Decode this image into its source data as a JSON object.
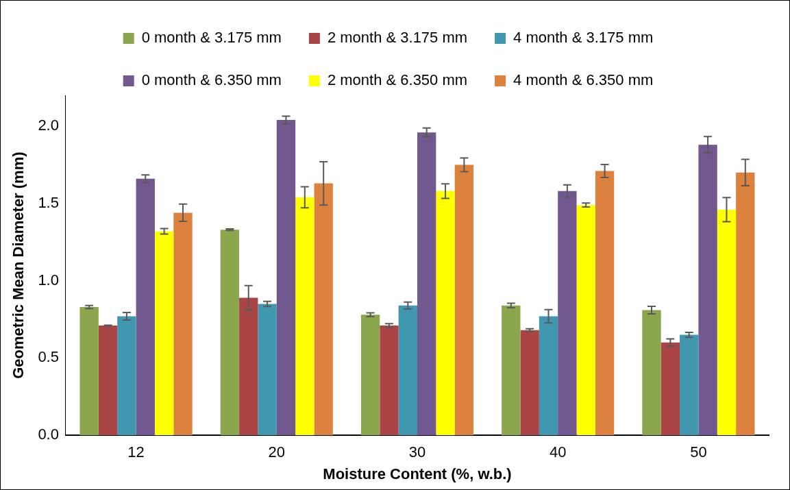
{
  "chart_data": {
    "type": "bar",
    "xlabel": "Moisture Content (%, w.b.)",
    "ylabel": "Geometric Mean Diameter (mm)",
    "categories": [
      "12",
      "20",
      "30",
      "40",
      "50"
    ],
    "series": [
      {
        "name": "0 month & 3.175 mm",
        "color": "#8ba64d",
        "values": [
          0.83,
          1.33,
          0.78,
          0.84,
          0.81
        ],
        "errors": [
          0.01,
          0.005,
          0.012,
          0.014,
          0.024
        ]
      },
      {
        "name": "2 month & 3.175 mm",
        "color": "#ab4545",
        "values": [
          0.71,
          0.89,
          0.71,
          0.68,
          0.6
        ],
        "errors": [
          0.003,
          0.079,
          0.013,
          0.009,
          0.024
        ]
      },
      {
        "name": "4 month & 3.175 mm",
        "color": "#4297b0",
        "values": [
          0.77,
          0.85,
          0.84,
          0.77,
          0.65
        ],
        "errors": [
          0.024,
          0.017,
          0.022,
          0.043,
          0.016
        ]
      },
      {
        "name": "0 month & 6.350 mm",
        "color": "#71588f",
        "values": [
          1.66,
          2.04,
          1.96,
          1.58,
          1.88
        ],
        "errors": [
          0.025,
          0.025,
          0.028,
          0.04,
          0.053
        ]
      },
      {
        "name": "2 month & 6.350 mm",
        "color": "#ffff00",
        "values": [
          1.32,
          1.54,
          1.58,
          1.49,
          1.46
        ],
        "errors": [
          0.018,
          0.068,
          0.047,
          0.013,
          0.078
        ]
      },
      {
        "name": "4 month & 6.350 mm",
        "color": "#dc823e",
        "values": [
          1.44,
          1.63,
          1.75,
          1.71,
          1.7
        ],
        "errors": [
          0.056,
          0.14,
          0.044,
          0.042,
          0.085
        ]
      }
    ],
    "ylim": [
      0,
      2.2
    ],
    "yticks": [
      {
        "value": 0,
        "label": "0.0"
      },
      {
        "value": 0.5,
        "label": "0.5"
      },
      {
        "value": 1,
        "label": "1.0"
      },
      {
        "value": 1.5,
        "label": "1.5"
      },
      {
        "value": 2,
        "label": "2.0"
      }
    ],
    "grid": false,
    "legend": "top"
  }
}
